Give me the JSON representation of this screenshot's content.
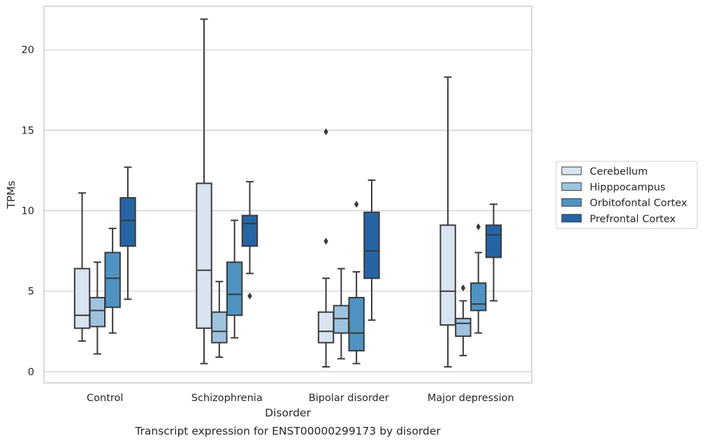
{
  "chart_data": {
    "type": "box",
    "title": "Transcript expression for ENST00000299173 by disorder",
    "xlabel": "Disorder",
    "ylabel": "TPMs",
    "ylim": [
      -0.7,
      22.7
    ],
    "yticks": [
      0,
      5,
      10,
      15,
      20
    ],
    "grid": true,
    "legend_position": "right",
    "categories": [
      "Control",
      "Schizophrenia",
      "Bipolar disorder",
      "Major depression"
    ],
    "series": [
      {
        "name": "Cerebellum",
        "color": "#d8e4f2",
        "boxes": [
          {
            "whisker_low": 1.9,
            "q1": 2.7,
            "median": 3.5,
            "q3": 6.4,
            "whisker_high": 11.1,
            "outliers": []
          },
          {
            "whisker_low": 0.5,
            "q1": 2.7,
            "median": 6.3,
            "q3": 11.7,
            "whisker_high": 21.9,
            "outliers": []
          },
          {
            "whisker_low": 0.3,
            "q1": 1.8,
            "median": 2.5,
            "q3": 3.7,
            "whisker_high": 5.8,
            "outliers": [
              8.1,
              14.9
            ]
          },
          {
            "whisker_low": 0.3,
            "q1": 2.9,
            "median": 5.0,
            "q3": 9.1,
            "whisker_high": 18.3,
            "outliers": []
          }
        ]
      },
      {
        "name": "Hipppocampus",
        "color": "#9ec3df",
        "boxes": [
          {
            "whisker_low": 1.1,
            "q1": 2.8,
            "median": 3.8,
            "q3": 4.6,
            "whisker_high": 6.8,
            "outliers": []
          },
          {
            "whisker_low": 0.9,
            "q1": 1.8,
            "median": 2.5,
            "q3": 3.7,
            "whisker_high": 5.6,
            "outliers": []
          },
          {
            "whisker_low": 0.8,
            "q1": 2.4,
            "median": 3.3,
            "q3": 4.1,
            "whisker_high": 6.4,
            "outliers": []
          },
          {
            "whisker_low": 1.0,
            "q1": 2.2,
            "median": 3.0,
            "q3": 3.3,
            "whisker_high": 4.4,
            "outliers": [
              5.2
            ]
          }
        ]
      },
      {
        "name": "Orbitofontal Cortex",
        "color": "#4f93c3",
        "boxes": [
          {
            "whisker_low": 2.4,
            "q1": 4.0,
            "median": 5.8,
            "q3": 7.4,
            "whisker_high": 8.9,
            "outliers": []
          },
          {
            "whisker_low": 2.1,
            "q1": 3.5,
            "median": 4.8,
            "q3": 6.8,
            "whisker_high": 9.4,
            "outliers": []
          },
          {
            "whisker_low": 0.5,
            "q1": 1.3,
            "median": 2.4,
            "q3": 4.6,
            "whisker_high": 6.2,
            "outliers": [
              10.4
            ]
          },
          {
            "whisker_low": 2.4,
            "q1": 3.8,
            "median": 4.2,
            "q3": 5.5,
            "whisker_high": 7.4,
            "outliers": [
              9.0
            ]
          }
        ]
      },
      {
        "name": "Prefrontal Cortex",
        "color": "#2565a6",
        "boxes": [
          {
            "whisker_low": 4.5,
            "q1": 7.8,
            "median": 9.4,
            "q3": 10.8,
            "whisker_high": 12.7,
            "outliers": []
          },
          {
            "whisker_low": 6.1,
            "q1": 7.8,
            "median": 9.2,
            "q3": 9.7,
            "whisker_high": 11.8,
            "outliers": [
              4.7
            ]
          },
          {
            "whisker_low": 3.2,
            "q1": 5.8,
            "median": 7.5,
            "q3": 9.9,
            "whisker_high": 11.9,
            "outliers": []
          },
          {
            "whisker_low": 4.4,
            "q1": 7.1,
            "median": 8.5,
            "q3": 9.1,
            "whisker_high": 10.4,
            "outliers": []
          }
        ]
      }
    ]
  }
}
